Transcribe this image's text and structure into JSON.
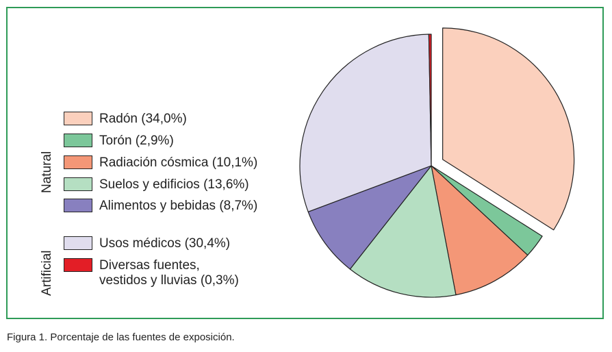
{
  "chart_data": {
    "type": "pie",
    "title": "",
    "start_angle_deg": 0,
    "direction": "clockwise",
    "exploded": [
      "Radón"
    ],
    "slices": [
      {
        "label": "Radón (34,0%)",
        "name": "Radón",
        "value": 34.0,
        "color": "#fbd0bd",
        "group": "Natural"
      },
      {
        "label": "Torón (2,9%)",
        "name": "Torón",
        "value": 2.9,
        "color": "#7cc79a",
        "group": "Natural"
      },
      {
        "label": "Radiación cósmica (10,1%)",
        "name": "Radiación cósmica",
        "value": 10.1,
        "color": "#f49777",
        "group": "Natural"
      },
      {
        "label": "Suelos y edificios (13,6%)",
        "name": "Suelos y edificios",
        "value": 13.6,
        "color": "#b5dfc2",
        "group": "Natural"
      },
      {
        "label": "Alimentos y bebidas (8,7%)",
        "name": "Alimentos y bebidas",
        "value": 8.7,
        "color": "#8880bf",
        "group": "Natural"
      },
      {
        "label": "Usos médicos (30,4%)",
        "name": "Usos médicos",
        "value": 30.4,
        "color": "#e0ddee",
        "group": "Artificial"
      },
      {
        "label_line1": "Diversas fuentes,",
        "label_line2": "vestidos y lluvias (0,3%)",
        "name": "Diversas fuentes, vestidos y lluvias",
        "value": 0.3,
        "color": "#e31e26",
        "group": "Artificial"
      }
    ],
    "groups": [
      "Natural",
      "Artificial"
    ],
    "legend_position": "left"
  },
  "caption": "Figura 1. Porcentaje de las fuentes de exposición."
}
